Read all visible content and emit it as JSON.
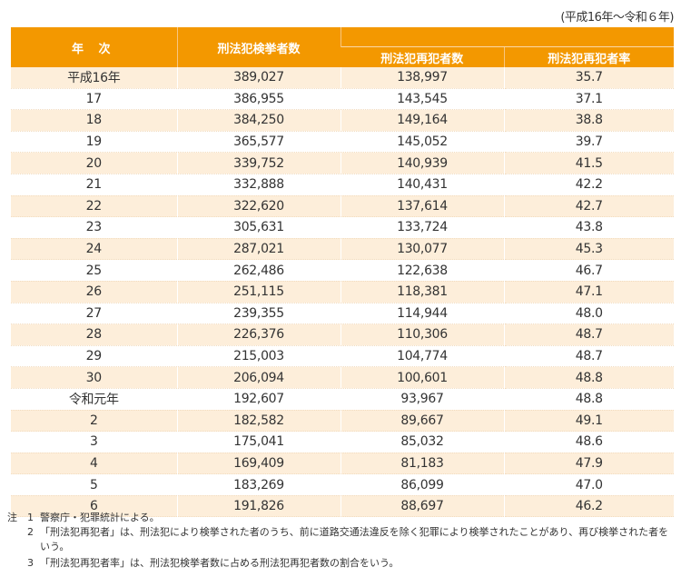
{
  "period": "(平成16年～令和６年)",
  "table": {
    "headers": {
      "year": "年 次",
      "arrests": "刑法犯検挙者数",
      "repeat_count": "刑法犯再犯者数",
      "repeat_rate": "刑法犯再犯者率"
    },
    "rows": [
      {
        "year": "平成16年",
        "arrests": "389,027",
        "repeat_count": "138,997",
        "repeat_rate": "35.7"
      },
      {
        "year": "17",
        "arrests": "386,955",
        "repeat_count": "143,545",
        "repeat_rate": "37.1"
      },
      {
        "year": "18",
        "arrests": "384,250",
        "repeat_count": "149,164",
        "repeat_rate": "38.8"
      },
      {
        "year": "19",
        "arrests": "365,577",
        "repeat_count": "145,052",
        "repeat_rate": "39.7"
      },
      {
        "year": "20",
        "arrests": "339,752",
        "repeat_count": "140,939",
        "repeat_rate": "41.5"
      },
      {
        "year": "21",
        "arrests": "332,888",
        "repeat_count": "140,431",
        "repeat_rate": "42.2"
      },
      {
        "year": "22",
        "arrests": "322,620",
        "repeat_count": "137,614",
        "repeat_rate": "42.7"
      },
      {
        "year": "23",
        "arrests": "305,631",
        "repeat_count": "133,724",
        "repeat_rate": "43.8"
      },
      {
        "year": "24",
        "arrests": "287,021",
        "repeat_count": "130,077",
        "repeat_rate": "45.3"
      },
      {
        "year": "25",
        "arrests": "262,486",
        "repeat_count": "122,638",
        "repeat_rate": "46.7"
      },
      {
        "year": "26",
        "arrests": "251,115",
        "repeat_count": "118,381",
        "repeat_rate": "47.1"
      },
      {
        "year": "27",
        "arrests": "239,355",
        "repeat_count": "114,944",
        "repeat_rate": "48.0"
      },
      {
        "year": "28",
        "arrests": "226,376",
        "repeat_count": "110,306",
        "repeat_rate": "48.7"
      },
      {
        "year": "29",
        "arrests": "215,003",
        "repeat_count": "104,774",
        "repeat_rate": "48.7"
      },
      {
        "year": "30",
        "arrests": "206,094",
        "repeat_count": "100,601",
        "repeat_rate": "48.8"
      },
      {
        "year": "令和元年",
        "arrests": "192,607",
        "repeat_count": "93,967",
        "repeat_rate": "48.8"
      },
      {
        "year": "2",
        "arrests": "182,582",
        "repeat_count": "89,667",
        "repeat_rate": "49.1"
      },
      {
        "year": "3",
        "arrests": "175,041",
        "repeat_count": "85,032",
        "repeat_rate": "48.6"
      },
      {
        "year": "4",
        "arrests": "169,409",
        "repeat_count": "81,183",
        "repeat_rate": "47.9"
      },
      {
        "year": "5",
        "arrests": "183,269",
        "repeat_count": "86,099",
        "repeat_rate": "47.0"
      },
      {
        "year": "6",
        "arrests": "191,826",
        "repeat_count": "88,697",
        "repeat_rate": "46.2"
      }
    ]
  },
  "notes": {
    "label": "注",
    "items": [
      {
        "num": "1",
        "text": "警察庁・犯罪統計による。"
      },
      {
        "num": "2",
        "text": "「刑法犯再犯者」は、刑法犯により検挙された者のうち、前に道路交通法違反を除く犯罪により検挙されたことがあり、再び検挙された者をいう。"
      },
      {
        "num": "3",
        "text": "「刑法犯再犯者率」は、刑法犯検挙者数に占める刑法犯再犯者数の割合をいう。"
      }
    ]
  },
  "colors": {
    "header_bg": "#F39800",
    "stripe_bg": "#FDEEDA"
  }
}
